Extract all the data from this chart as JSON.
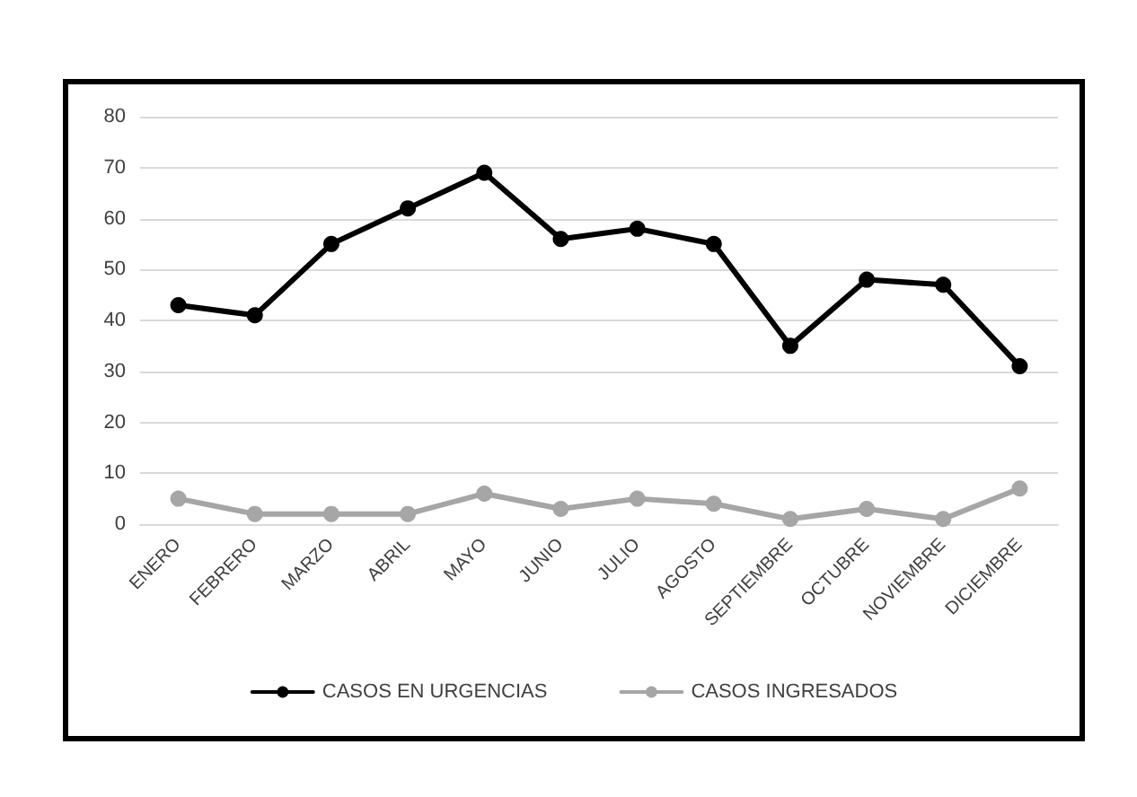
{
  "chart_data": {
    "type": "line",
    "categories": [
      "ENERO",
      "FEBRERO",
      "MARZO",
      "ABRIL",
      "MAYO",
      "JUNIO",
      "JULIO",
      "AGOSTO",
      "SEPTIEMBRE",
      "OCTUBRE",
      "NOVIEMBRE",
      "DICIEMBRE"
    ],
    "series": [
      {
        "name": "CASOS EN URGENCIAS",
        "color": "#000000",
        "values": [
          43,
          41,
          55,
          62,
          69,
          56,
          58,
          55,
          35,
          48,
          47,
          31
        ]
      },
      {
        "name": "CASOS INGRESADOS",
        "color": "#a6a6a6",
        "values": [
          5,
          2,
          2,
          2,
          6,
          3,
          5,
          4,
          1,
          3,
          1,
          7
        ]
      }
    ],
    "ylim": [
      0,
      80
    ],
    "yticks": [
      0,
      10,
      20,
      30,
      40,
      50,
      60,
      70,
      80
    ],
    "grid": "y",
    "legend": "bottom",
    "marker": "circle",
    "line_style": "solid"
  }
}
